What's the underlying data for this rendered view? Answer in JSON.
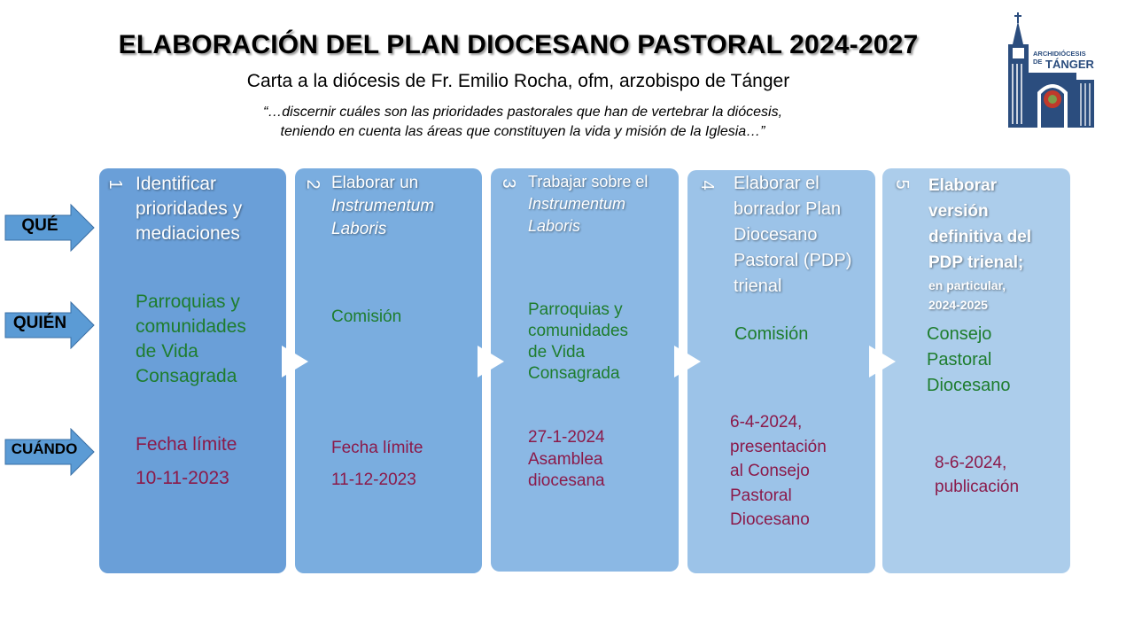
{
  "header": {
    "title": "ELABORACIÓN DEL PLAN DIOCESANO PASTORAL 2024-2027",
    "subtitle": "Carta a la diócesis de Fr. Emilio Rocha, ofm, arzobispo de Tánger",
    "quote": "“…discernir cuáles son las prioridades pastorales que han de vertebrar la diócesis,\nteniendo en cuenta las áreas que constituyen la vida y misión de la Iglesia…”"
  },
  "logo": {
    "line1": "ARCHIDIÓCESIS DE",
    "line2": "TÁNGER",
    "color": "#2b4d7e"
  },
  "row_labels": {
    "que": "QUÉ",
    "quien": "QUIÉN",
    "cuando": "CUÁNDO"
  },
  "colors": {
    "card1": "#6a9fd8",
    "card2": "#7aaddf",
    "card3": "#8bb8e4",
    "card4": "#9cc3e8",
    "card5": "#accdeb",
    "who": "#1e7d2e",
    "when": "#8b1a4a",
    "arrow": "#5b9bd5"
  },
  "steps": [
    {
      "number": "1",
      "what": "Identificar\nprioridades y\nmediaciones",
      "who": "Parroquias y\ncomunidades\nde Vida\nConsagrada",
      "when1": "Fecha límite",
      "when2": "10-11-2023"
    },
    {
      "number": "2",
      "what": "Elaborar un",
      "what_italic": "Instrumentum\nLaboris",
      "who": "Comisión",
      "when1": "Fecha límite",
      "when2": "11-12-2023"
    },
    {
      "number": "3",
      "what": "Trabajar sobre el",
      "what_italic": "Instrumentum\nLaboris",
      "who": "Parroquias y\ncomunidades\n de Vida\nConsagrada",
      "when": "27-1-2024\nAsamblea\ndiocesana"
    },
    {
      "number": "4",
      "what": "Elaborar el\nborrador Plan\nDiocesano\nPastoral (PDP)\ntrienal",
      "who": "Comisión",
      "when": "6-4-2024,\npresentación\nal Consejo\nPastoral\nDiocesano"
    },
    {
      "number": "5",
      "what": "Elaborar\nversión\ndefinitiva del\nPDP trienal;",
      "what_small": "en particular,\n2024-2025",
      "who": "Consejo\nPastoral\nDiocesano",
      "when": "8-6-2024,\npublicación"
    }
  ]
}
